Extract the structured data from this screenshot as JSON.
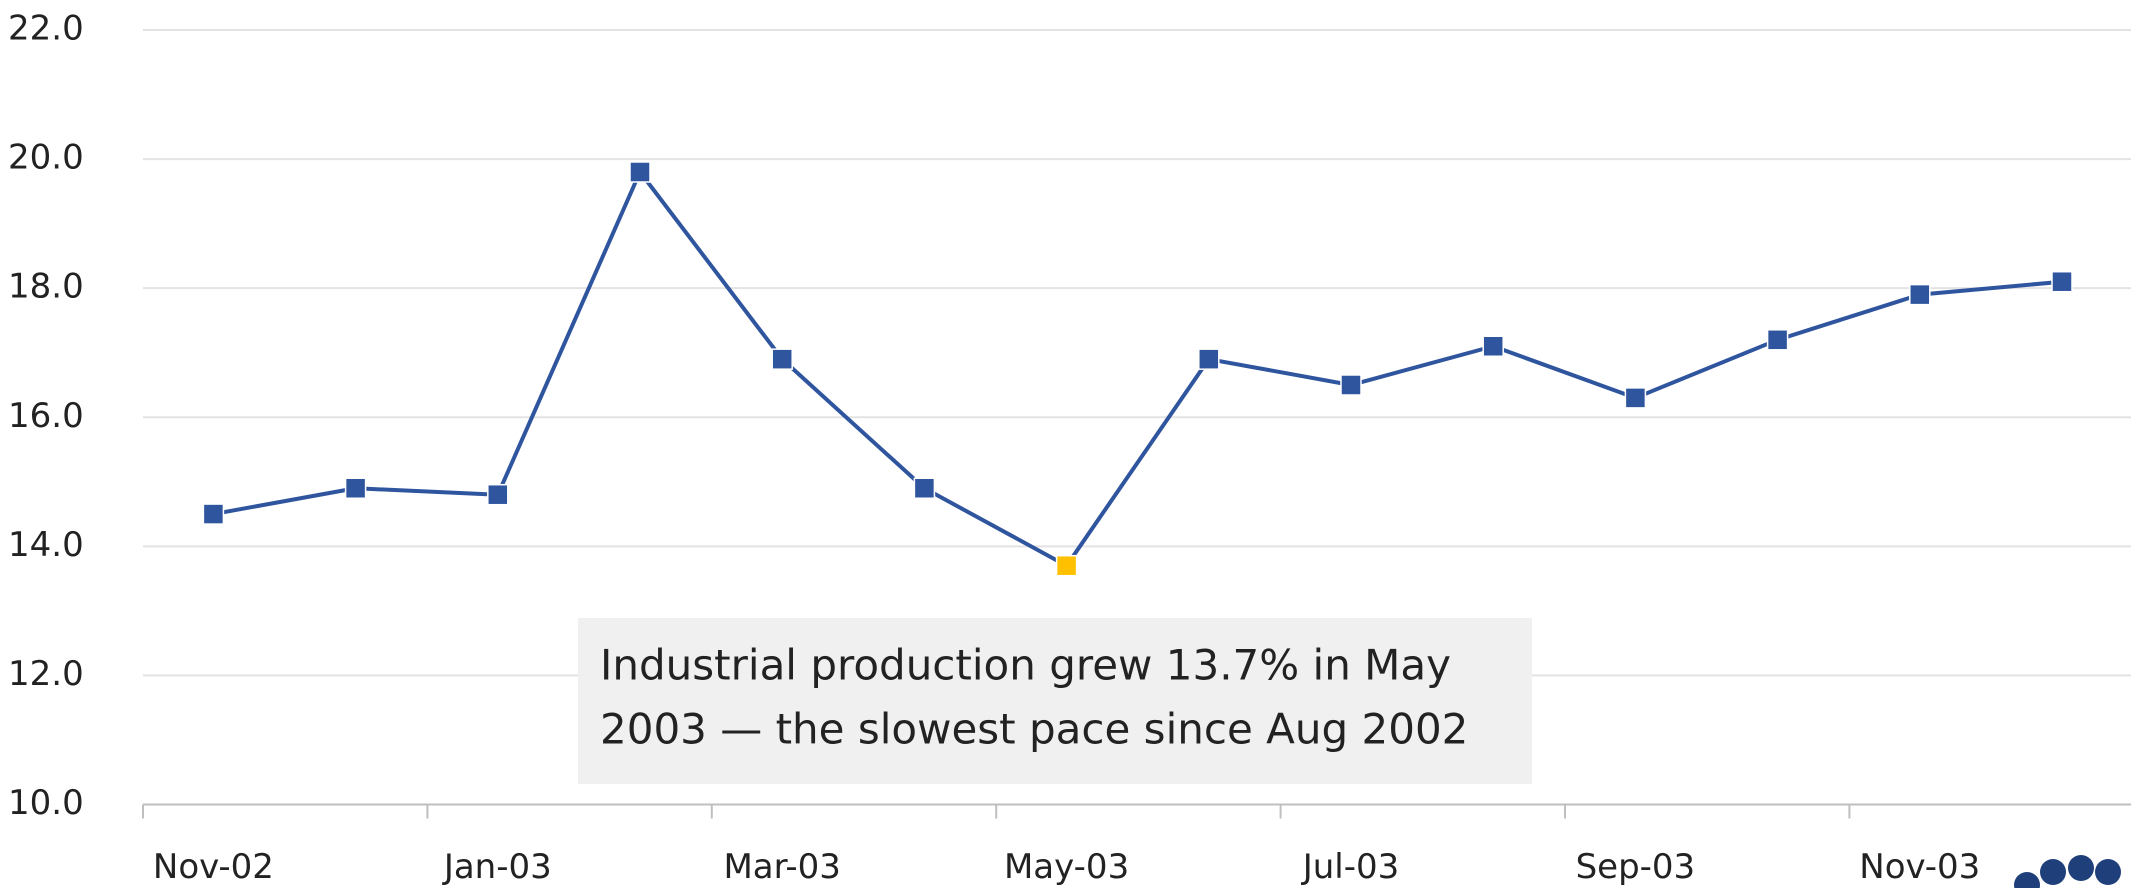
{
  "chart_data": {
    "type": "line",
    "categories": [
      "Nov-02",
      null,
      "Jan-03",
      null,
      "Mar-03",
      null,
      "May-03",
      null,
      "Jul-03",
      null,
      "Sep-03",
      null,
      "Nov-03",
      null
    ],
    "series": [
      {
        "color": "#2f559e",
        "values": [
          14.5,
          14.9,
          14.8,
          19.8,
          16.9,
          14.9,
          13.7,
          16.9,
          16.5,
          17.1,
          16.3,
          17.2,
          17.9,
          18.1
        ]
      }
    ],
    "marker_colors": [
      "#2f559e",
      "#2f559e",
      "#2f559e",
      "#2f559e",
      "#2f559e",
      "#2f559e",
      "#ffc000",
      "#2f559e",
      "#2f559e",
      "#2f559e",
      "#2f559e",
      "#2f559e",
      "#2f559e",
      "#2f559e"
    ],
    "ylim": [
      10,
      22
    ],
    "yticks": [
      {
        "value": 10,
        "label": "10.0"
      },
      {
        "value": 12,
        "label": "12.0"
      },
      {
        "value": 14,
        "label": "14.0"
      },
      {
        "value": 16,
        "label": "16.0"
      },
      {
        "value": 18,
        "label": "18.0"
      },
      {
        "value": 20,
        "label": "20.0"
      },
      {
        "value": 22,
        "label": "22.0"
      }
    ],
    "grid": true,
    "annotation": [
      "Industrial production grew 13.7% in May",
      "2003 — the slowest pace since Aug 2002"
    ]
  }
}
